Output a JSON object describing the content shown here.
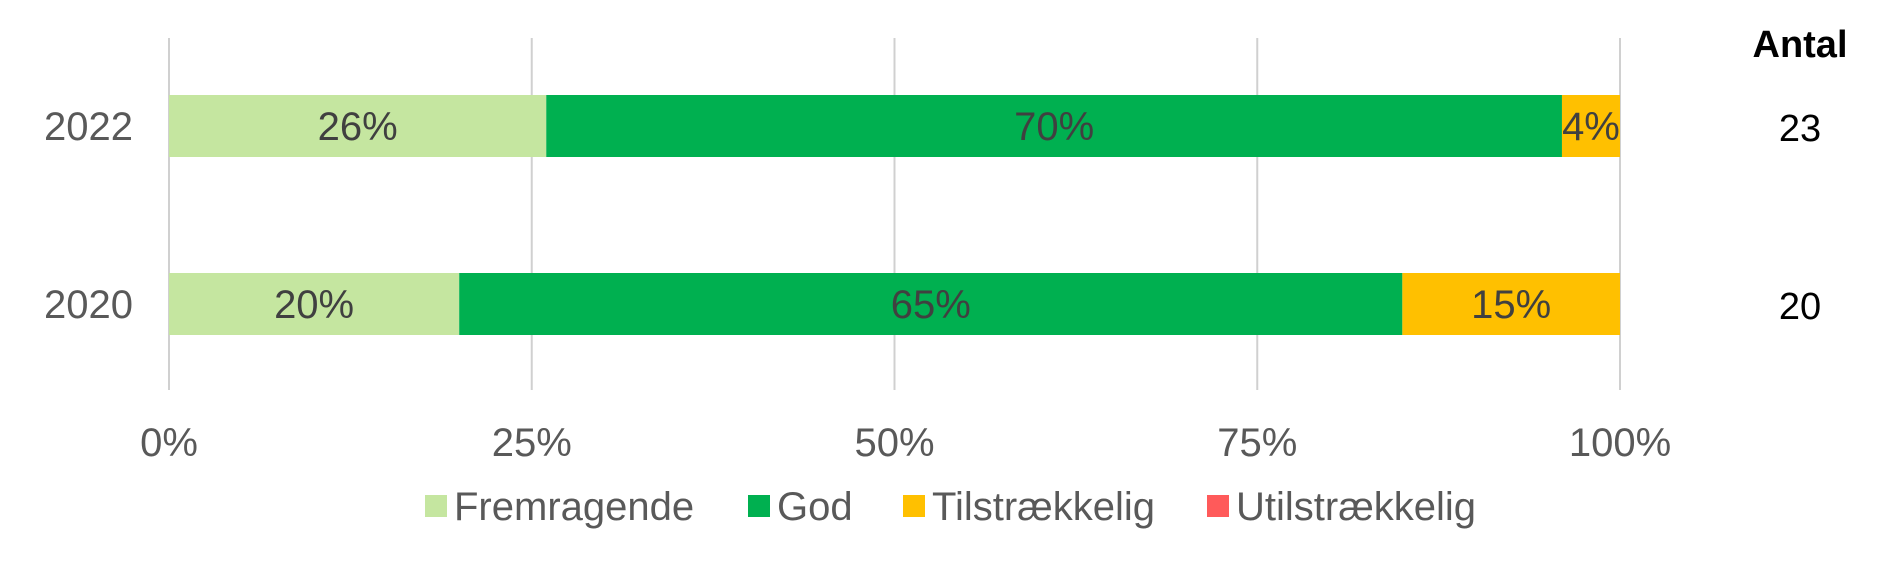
{
  "chart_data": {
    "type": "bar",
    "orientation": "horizontal",
    "stacked": "percent",
    "categories": [
      "2022",
      "2020"
    ],
    "series": [
      {
        "name": "Fremragende",
        "color": "#c5e6a0",
        "values": [
          26,
          20
        ],
        "labels": [
          "26%",
          "20%"
        ]
      },
      {
        "name": "God",
        "color": "#00b050",
        "values": [
          70,
          65
        ],
        "labels": [
          "70%",
          "65%"
        ]
      },
      {
        "name": "Tilstrækkelig",
        "color": "#ffc000",
        "values": [
          4,
          15
        ],
        "labels": [
          "4%",
          "15%"
        ]
      },
      {
        "name": "Utilstrækkelig",
        "color": "#ff5a5a",
        "values": [
          0,
          0
        ],
        "labels": [
          "",
          ""
        ]
      }
    ],
    "xlim": [
      0,
      100
    ],
    "xticks": [
      "0%",
      "25%",
      "50%",
      "75%",
      "100%"
    ],
    "grid": true,
    "legend_position": "bottom",
    "side_table": {
      "title": "Antal",
      "values": [
        "23",
        "20"
      ]
    }
  }
}
